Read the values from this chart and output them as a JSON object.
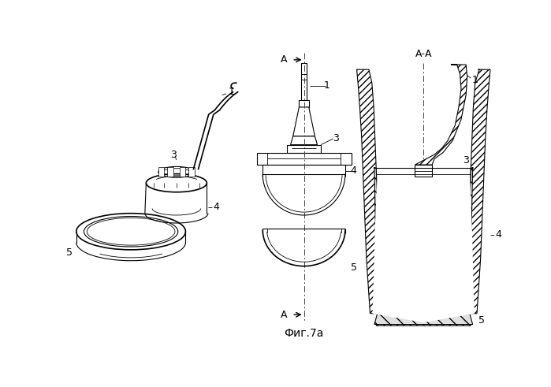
{
  "background_color": "#ffffff",
  "line_color": "#000000",
  "fig_width": 6.99,
  "fig_height": 4.91,
  "fig_caption": "Фиг.7а",
  "A_label": "А",
  "AA_label": "А-А"
}
